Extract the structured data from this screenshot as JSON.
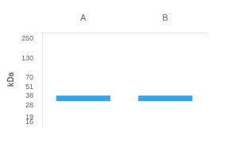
{
  "chart_data": {
    "type": "scatter",
    "y_label": "kDa",
    "categories": [
      "A",
      "B"
    ],
    "values": [
      35.0,
      35.0
    ],
    "marker": "line",
    "log": "y",
    "ylim": [
      14,
      300
    ],
    "yticks": [
      250,
      130,
      70,
      51,
      38,
      28,
      19,
      16
    ],
    "grid": false
  }
}
